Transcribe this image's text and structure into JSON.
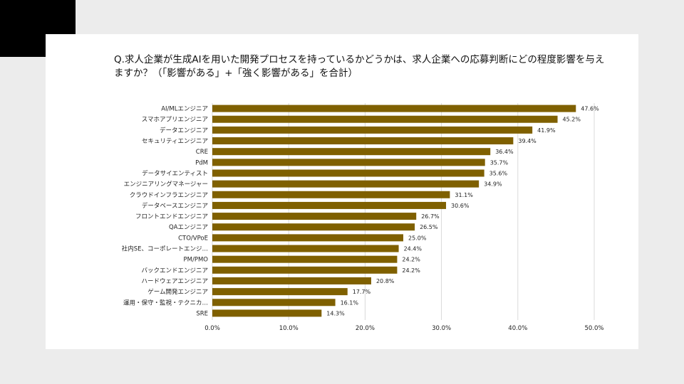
{
  "slide": {
    "question": "Q.求人企業が生成AIを用いた開発プロセスを持っているかどうかは、求人企業への応募判断にどの程度影響を与えますか？（「影響がある」+「強く影響がある」を合計）"
  },
  "colors": {
    "bar": "#7f6000",
    "corner_block": "#000000",
    "background": "#ececec",
    "card": "#ffffff"
  },
  "chart_data": {
    "type": "bar",
    "orientation": "horizontal",
    "categories": [
      "AI/MLエンジニア",
      "スマホアプリエンジニア",
      "データエンジニア",
      "セキュリティエンジニア",
      "CRE",
      "PdM",
      "データサイエンティスト",
      "エンジニアリングマネージャー",
      "クラウドインフラエンジニア",
      "データベースエンジニア",
      "フロントエンドエンジニア",
      "QAエンジニア",
      "CTO/VPoE",
      "社内SE、コーポレートエンジ…",
      "PM/PMO",
      "バックエンドエンジニア",
      "ハードウェアエンジニア",
      "ゲーム開発エンジニア",
      "運用・保守・監視・テクニカ…",
      "SRE"
    ],
    "values": [
      47.6,
      45.2,
      41.9,
      39.4,
      36.4,
      35.7,
      35.6,
      34.9,
      31.1,
      30.6,
      26.7,
      26.5,
      25.0,
      24.4,
      24.2,
      24.2,
      20.8,
      17.7,
      16.1,
      14.3
    ],
    "value_labels": [
      "47.6%",
      "45.2%",
      "41.9%",
      "39.4%",
      "36.4%",
      "35.7%",
      "35.6%",
      "34.9%",
      "31.1%",
      "30.6%",
      "26.7%",
      "26.5%",
      "25.0%",
      "24.4%",
      "24.2%",
      "24.2%",
      "20.8%",
      "17.7%",
      "16.1%",
      "14.3%"
    ],
    "x_ticks": [
      0,
      10,
      20,
      30,
      40,
      50
    ],
    "x_tick_labels": [
      "0.0%",
      "10.0%",
      "20.0%",
      "30.0%",
      "40.0%",
      "50.0%"
    ],
    "xlim": [
      0,
      50
    ],
    "grid": true,
    "legend": false
  }
}
